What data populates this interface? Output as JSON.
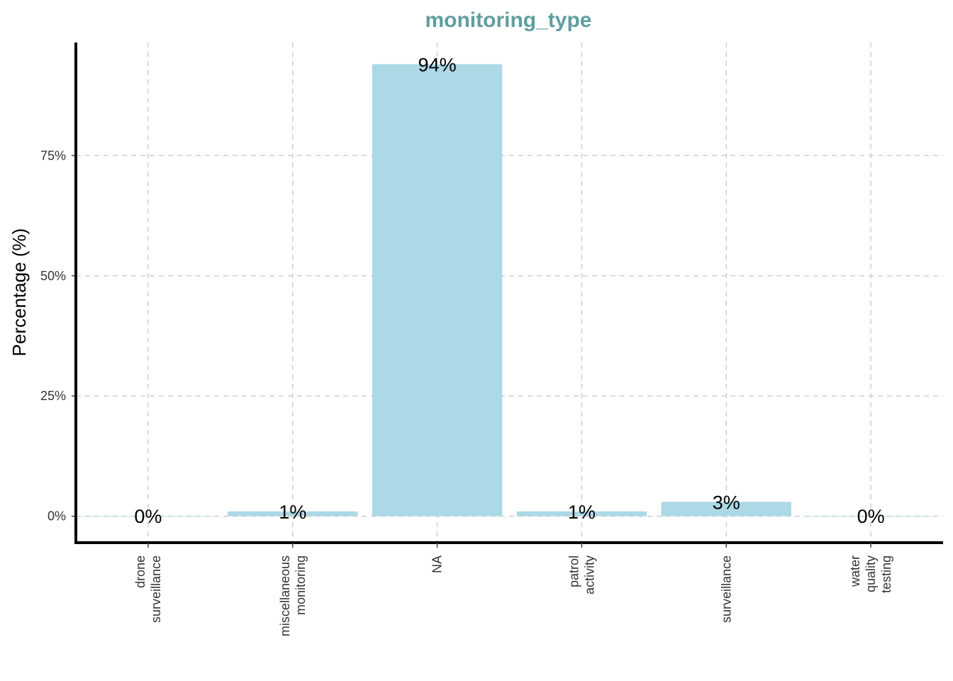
{
  "chart_data": {
    "type": "bar",
    "title": "monitoring_type",
    "xlabel": "",
    "ylabel": "Percentage (%)",
    "categories": [
      [
        "drone",
        "surveillance"
      ],
      [
        "miscellaneous",
        "monitoring"
      ],
      [
        "NA"
      ],
      [
        "patrol",
        "activity"
      ],
      [
        "surveillance"
      ],
      [
        "water",
        "quality",
        "testing"
      ]
    ],
    "values": [
      0.1,
      1,
      94,
      1,
      3,
      0.1
    ],
    "value_labels": [
      "0%",
      "1%",
      "94%",
      "1%",
      "3%",
      "0%"
    ],
    "ylim": [
      -5.5,
      98.5
    ],
    "yticks": [
      0,
      25,
      50,
      75
    ],
    "ytick_labels": [
      "0%",
      "25%",
      "50%",
      "75%"
    ],
    "grid": true,
    "legend": "none",
    "colors": {
      "bar": "#ADD8E6",
      "title": "#5F9EA0",
      "grid": "#CFCFCF",
      "axis": "#000000"
    }
  }
}
